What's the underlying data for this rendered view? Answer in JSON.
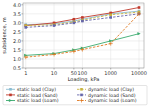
{
  "chart_data": {
    "type": "line",
    "x": [
      1,
      10,
      50,
      100,
      1000,
      10000
    ],
    "series": [
      {
        "name": "static load (Clay)",
        "color": "#8abcd1",
        "marker": "square",
        "line_style": "solid",
        "values": [
          2.9,
          2.95,
          3.1,
          3.2,
          3.5,
          3.65
        ]
      },
      {
        "name": "static load (Sand)",
        "color": "#c0392b",
        "marker": "square",
        "line_style": "solid",
        "values": [
          2.85,
          3.0,
          3.2,
          3.3,
          3.55,
          3.85
        ]
      },
      {
        "name": "static load (Loam)",
        "color": "#3aaa6e",
        "marker": "triangle-right",
        "line_style": "solid",
        "values": [
          1.2,
          1.3,
          1.5,
          1.6,
          2.0,
          2.4
        ]
      },
      {
        "name": "dynamic load (Clay)",
        "color": "#c8b440",
        "marker": "square",
        "line_style": "dashed",
        "values": [
          2.85,
          2.9,
          3.05,
          3.15,
          3.45,
          3.6
        ]
      },
      {
        "name": "dynamic load (Sand)",
        "color": "#6666aa",
        "marker": "square",
        "line_style": "dashed",
        "values": [
          2.75,
          2.85,
          3.0,
          3.1,
          3.3,
          3.5
        ]
      },
      {
        "name": "dynamic load (Loam)",
        "color": "#e07820",
        "marker": "plus",
        "line_style": "dashed",
        "values": [
          1.1,
          1.25,
          1.42,
          1.52,
          1.85,
          3.5
        ]
      }
    ],
    "xlabel": "Loading, kPa",
    "ylabel": "subsidence, m",
    "xlim": [
      0.8,
      15000
    ],
    "ylim": [
      0.5,
      4.1
    ],
    "xticks": [
      1,
      10,
      50,
      100,
      1000,
      10000
    ],
    "yticks": [
      0.5,
      {
        "value": 1.0,
        "label": "1.0"
      },
      1.5,
      {
        "value": 2.0,
        "label": "2.0"
      },
      2.5,
      {
        "value": 3.0,
        "label": "3.0"
      },
      3.5,
      {
        "value": 4.0,
        "label": "4.0"
      }
    ],
    "log": "x",
    "grid": true,
    "legend": "bottom"
  }
}
